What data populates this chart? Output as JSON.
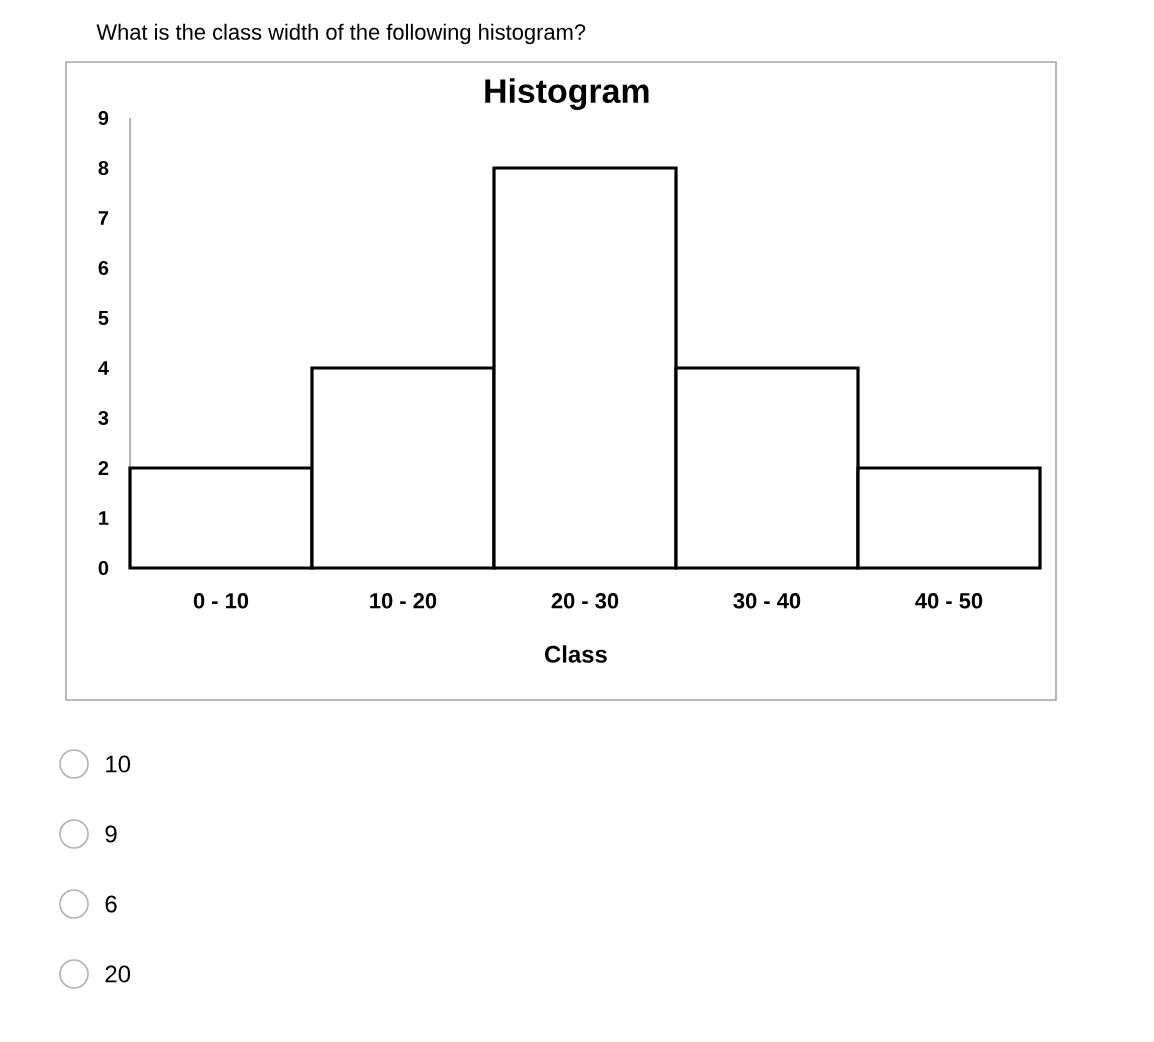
{
  "chart_data": {
    "type": "bar",
    "title": "Histogram",
    "xlabel": "Class",
    "categories": [
      "0 - 10",
      "10 - 20",
      "20 - 30",
      "30 - 40",
      "40 - 50"
    ],
    "values": [
      2,
      4,
      8,
      4,
      2
    ],
    "color": "#ffffff",
    "ylim": [
      0,
      9
    ],
    "yticks": [
      0,
      1,
      2,
      3,
      4,
      5,
      6,
      7,
      8,
      9
    ],
    "annotations": [
      "What is the class width of the following histogram?",
      "10",
      "9",
      "6",
      "20"
    ]
  }
}
